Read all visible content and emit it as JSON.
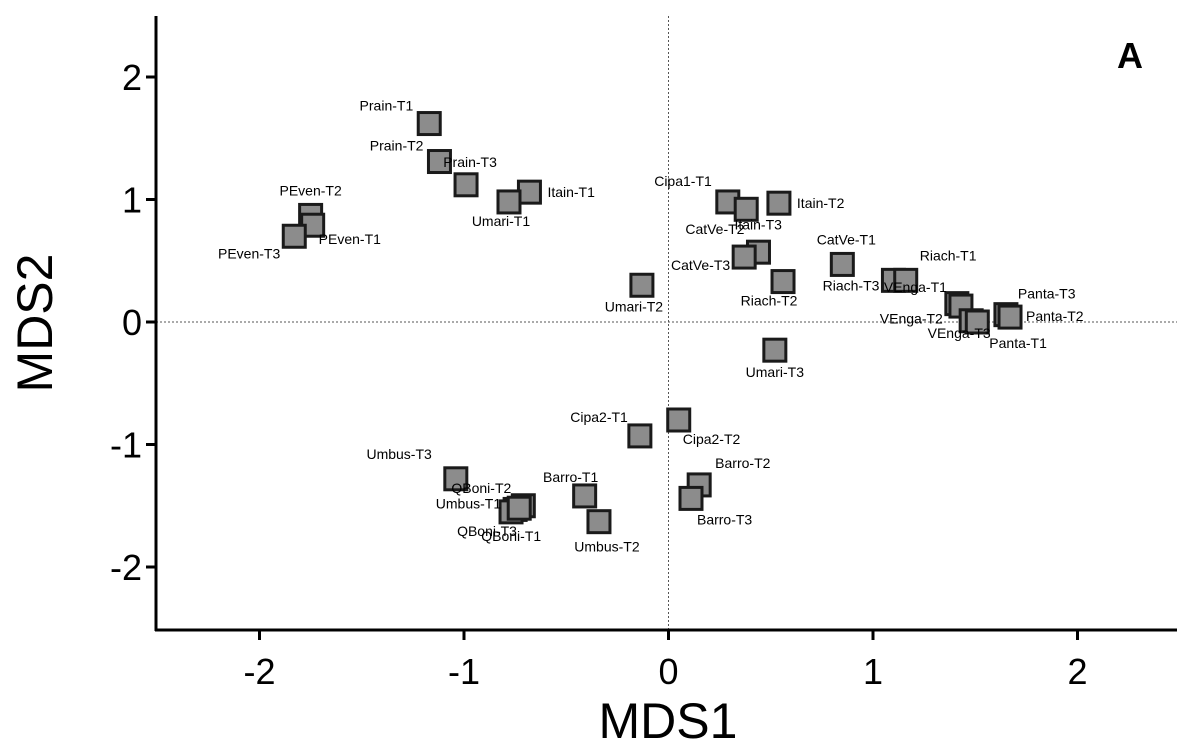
{
  "chart_data": {
    "type": "scatter",
    "panel_label": "A",
    "xlabel": "MDS1",
    "ylabel": "MDS2",
    "xlim": [
      -2.5,
      2.5
    ],
    "ylim": [
      -2.5,
      2.5
    ],
    "xticks": [
      "-2",
      "-1",
      "0",
      "1",
      "2"
    ],
    "yticks": [
      "-2",
      "-1",
      "0",
      "1",
      "2"
    ],
    "reference_lines": {
      "x": 0,
      "y": 0
    },
    "marker_color": "#8c8c8c",
    "marker_edge_color": "#1a1a1a",
    "points": [
      {
        "label": "Prain-T1",
        "x": -1.17,
        "y": 1.62
      },
      {
        "label": "Prain-T2",
        "x": -1.12,
        "y": 1.31
      },
      {
        "label": "Prain-T3",
        "x": -0.99,
        "y": 1.12
      },
      {
        "label": "Itain-T1",
        "x": -0.68,
        "y": 1.06
      },
      {
        "label": "Umari-T1",
        "x": -0.78,
        "y": 0.98
      },
      {
        "label": "PEven-T2",
        "x": -1.75,
        "y": 0.87
      },
      {
        "label": "PEven-T1",
        "x": -1.74,
        "y": 0.79
      },
      {
        "label": "PEven-T3",
        "x": -1.83,
        "y": 0.7
      },
      {
        "label": "Cipa1-T1",
        "x": 0.29,
        "y": 0.98
      },
      {
        "label": "Itain-T2",
        "x": 0.54,
        "y": 0.97
      },
      {
        "label": "Itain-T3",
        "x": 0.38,
        "y": 0.92
      },
      {
        "label": "CatVe-T2",
        "x": 0.44,
        "y": 0.57
      },
      {
        "label": "CatVe-T3",
        "x": 0.37,
        "y": 0.53
      },
      {
        "label": "CatVe-T1",
        "x": 0.85,
        "y": 0.47
      },
      {
        "label": "Riach-T3",
        "x": 1.1,
        "y": 0.34
      },
      {
        "label": "Riach-T1",
        "x": 1.16,
        "y": 0.34
      },
      {
        "label": "Riach-T2",
        "x": 0.56,
        "y": 0.33
      },
      {
        "label": "Umari-T2",
        "x": -0.13,
        "y": 0.3
      },
      {
        "label": "VEnga-T2",
        "x": 1.41,
        "y": 0.15
      },
      {
        "label": "VEnga-T1",
        "x": 1.43,
        "y": 0.13
      },
      {
        "label": "Panta-T3",
        "x": 1.65,
        "y": 0.06
      },
      {
        "label": "Panta-T2",
        "x": 1.67,
        "y": 0.04
      },
      {
        "label": "VEnga-T3",
        "x": 1.48,
        "y": 0.01
      },
      {
        "label": "Panta-T1",
        "x": 1.51,
        "y": 0.0
      },
      {
        "label": "Umari-T3",
        "x": 0.52,
        "y": -0.23
      },
      {
        "label": "Cipa2-T2",
        "x": 0.05,
        "y": -0.8
      },
      {
        "label": "Cipa2-T1",
        "x": -0.14,
        "y": -0.93
      },
      {
        "label": "Umbus-T3",
        "x": -1.04,
        "y": -1.28
      },
      {
        "label": "Barro-T2",
        "x": 0.15,
        "y": -1.33
      },
      {
        "label": "Barro-T1",
        "x": -0.41,
        "y": -1.42
      },
      {
        "label": "Barro-T3",
        "x": 0.11,
        "y": -1.44
      },
      {
        "label": "QBoni-T2",
        "x": -0.71,
        "y": -1.5
      },
      {
        "label": "Umbus-T1",
        "x": -0.75,
        "y": -1.53
      },
      {
        "label": "QBoni-T3",
        "x": -0.77,
        "y": -1.55
      },
      {
        "label": "QBoni-T1",
        "x": -0.73,
        "y": -1.52
      },
      {
        "label": "Umbus-T2",
        "x": -0.34,
        "y": -1.63
      }
    ]
  }
}
